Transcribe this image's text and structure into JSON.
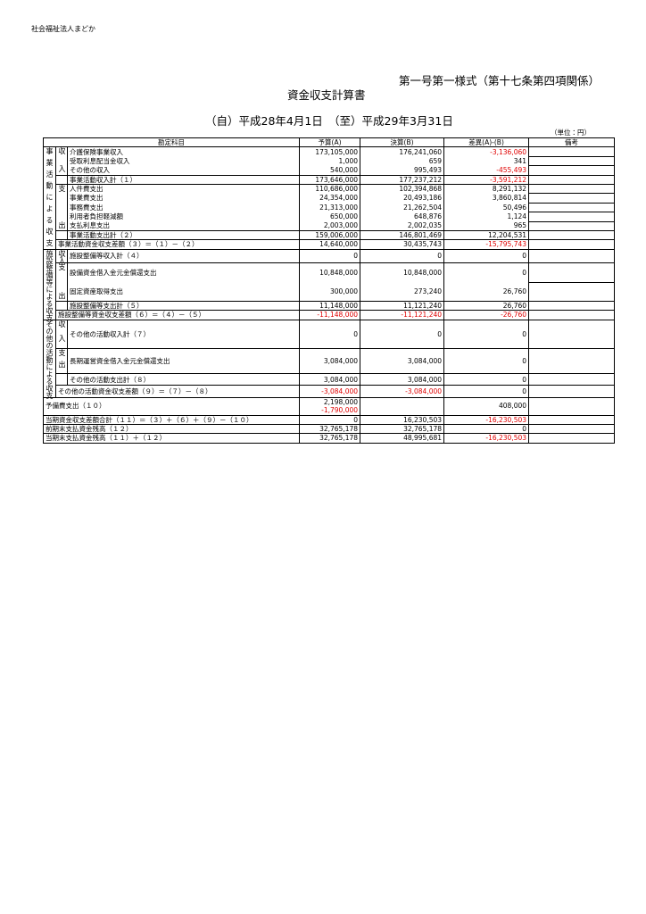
{
  "header": {
    "organization": "社会福祉法人まどか",
    "form": "第一号第一様式（第十七条第四項関係）",
    "title": "資金収支計算書",
    "period": "（自）平成28年4月1日　（至）平成29年3月31日",
    "unit": "（単位：円）"
  },
  "table": {
    "columns": [
      "勘定科目",
      "予算(A)",
      "決算(B)",
      "差異(A)-(B)",
      "備考"
    ],
    "sections": [
      {
        "label": "事業活動による収支",
        "income": {
          "label": "収入",
          "rows": [
            {
              "item": "介護保険事業収入",
              "budget": "173,105,000",
              "actual": "176,241,060",
              "diff": "-3,136,060"
            },
            {
              "item": "受取利息配当金収入",
              "budget": "1,000",
              "actual": "659",
              "diff": "341"
            },
            {
              "item": "その他の収入",
              "budget": "540,000",
              "actual": "995,493",
              "diff": "-455,493"
            }
          ]
        },
        "income_total": {
          "item": "事業活動収入計（１）",
          "budget": "173,646,000",
          "actual": "177,237,212",
          "diff": "-3,591,212"
        },
        "expense": {
          "label": "支出",
          "rows": [
            {
              "item": "人件費支出",
              "budget": "110,686,000",
              "actual": "102,394,868",
              "diff": "8,291,132"
            },
            {
              "item": "事業費支出",
              "budget": "24,354,000",
              "actual": "20,493,186",
              "diff": "3,860,814"
            },
            {
              "item": "事務費支出",
              "budget": "21,313,000",
              "actual": "21,262,504",
              "diff": "50,496"
            },
            {
              "item": "利用者負担軽減額",
              "budget": "650,000",
              "actual": "648,876",
              "diff": "1,124"
            },
            {
              "item": "支払利息支出",
              "budget": "2,003,000",
              "actual": "2,002,035",
              "diff": "965"
            }
          ]
        },
        "expense_total": {
          "item": "事業活動支出計（２）",
          "budget": "159,006,000",
          "actual": "146,801,469",
          "diff": "12,204,531"
        },
        "balance": {
          "item": "事業活動資金収支差額（３）＝（１）－（２）",
          "budget": "14,640,000",
          "actual": "30,435,743",
          "diff": "-15,795,743"
        }
      },
      {
        "label": "施設整備等による収支",
        "income": {
          "label": "収入",
          "rows": [
            {
              "item": "施設整備等収入計（４）",
              "budget": "0",
              "actual": "0",
              "diff": "0"
            }
          ]
        },
        "expense": {
          "label": "支出",
          "rows": [
            {
              "item": "設備資金借入金元金償還支出",
              "budget": "10,848,000",
              "actual": "10,848,000",
              "diff": "0"
            },
            {
              "item": "固定資産取得支出",
              "budget": "300,000",
              "actual": "273,240",
              "diff": "26,760"
            }
          ]
        },
        "expense_total": {
          "item": "施設整備等支出計（５）",
          "budget": "11,148,000",
          "actual": "11,121,240",
          "diff": "26,760"
        },
        "balance": {
          "item": "施設整備等資金収支差額（６）＝（４）－（５）",
          "budget": "-11,148,000",
          "actual": "-11,121,240",
          "diff": "-26,760"
        }
      },
      {
        "label": "その他の活動による収支",
        "income": {
          "label": "収入",
          "rows": [
            {
              "item": "その他の活動収入計（７）",
              "budget": "0",
              "actual": "0",
              "diff": "0"
            }
          ]
        },
        "expense": {
          "label": "支出",
          "rows": [
            {
              "item": "長期運営資金借入金元金償還支出",
              "budget": "3,084,000",
              "actual": "3,084,000",
              "diff": "0"
            }
          ]
        },
        "expense_total": {
          "item": "その他の活動支出計（８）",
          "budget": "3,084,000",
          "actual": "3,084,000",
          "diff": "0"
        },
        "balance": {
          "item": "その他の活動資金収支差額（９）＝（７）－（８）",
          "budget": "-3,084,000",
          "actual": "-3,084,000",
          "diff": "0"
        }
      }
    ],
    "totals": [
      {
        "item": "予備費支出（１０）",
        "budget": "2,198,000",
        "budget_line2": "-1,790,000",
        "diff": "408,000"
      },
      {
        "item": "当期資金収支差額合計（１１）＝（３）＋（６）＋（９）－（１０）",
        "budget": "0",
        "actual": "16,230,503",
        "diff": "-16,230,503"
      },
      {
        "item": "前期末支払資金残高（１２）",
        "budget": "32,765,178",
        "actual": "32,765,178",
        "diff": "0"
      },
      {
        "item": "当期末支払資金残高（１１）＋（１２）",
        "budget": "32,765,178",
        "actual": "48,995,681",
        "diff": "-16,230,503"
      }
    ]
  }
}
